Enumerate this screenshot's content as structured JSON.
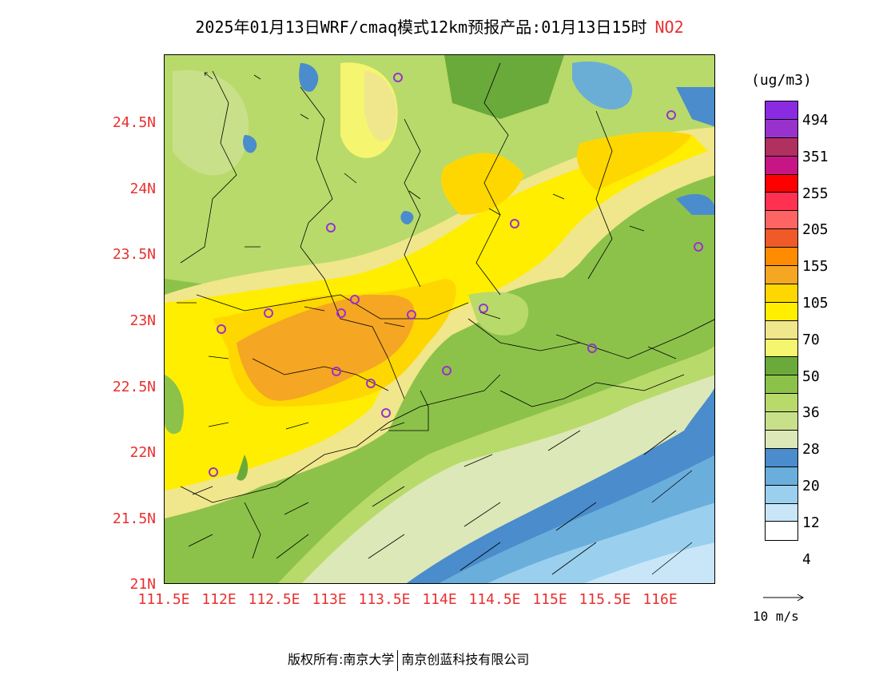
{
  "title": {
    "main": "2025年01月13日WRF/cmaq模式12km预报产品:01月13日15时",
    "species": "NO2"
  },
  "y_axis_labels": [
    "24.5N",
    "24N",
    "23.5N",
    "23N",
    "22.5N",
    "22N",
    "21.5N",
    "21N"
  ],
  "x_axis_labels": [
    "111.5E",
    "112E",
    "112.5E",
    "113E",
    "113.5E",
    "114E",
    "114.5E",
    "115E",
    "115.5E",
    "116E"
  ],
  "colorbar": {
    "units": "(ug/m3)",
    "labels": [
      "494",
      "351",
      "255",
      "205",
      "155",
      "105",
      "70",
      "50",
      "36",
      "28",
      "20",
      "12",
      "4"
    ],
    "colors": [
      "#8a2be2",
      "#9932cc",
      "#b03060",
      "#c71585",
      "#ff0000",
      "#ff3050",
      "#ff6464",
      "#f05a28",
      "#ff8c00",
      "#f5a623",
      "#ffd700",
      "#ffee00",
      "#f0e68c",
      "#f5f570",
      "#6aaa3a",
      "#8cc24a",
      "#b8da6a",
      "#c9e08a",
      "#dde8b8",
      "#4a8ccc",
      "#6aaedc",
      "#9ad0ee",
      "#c8e6f8",
      "#ffffff"
    ]
  },
  "wind_reference": {
    "label": "10 m/s"
  },
  "cities": [
    "c1",
    "c2",
    "c3",
    "c4",
    "c5",
    "c6",
    "c7",
    "c8",
    "c9",
    "c10",
    "c11",
    "c12",
    "c13",
    "c14",
    "c15"
  ],
  "footer": {
    "left": "版权所有:南京大学",
    "right": "南京创蓝科技有限公司"
  }
}
